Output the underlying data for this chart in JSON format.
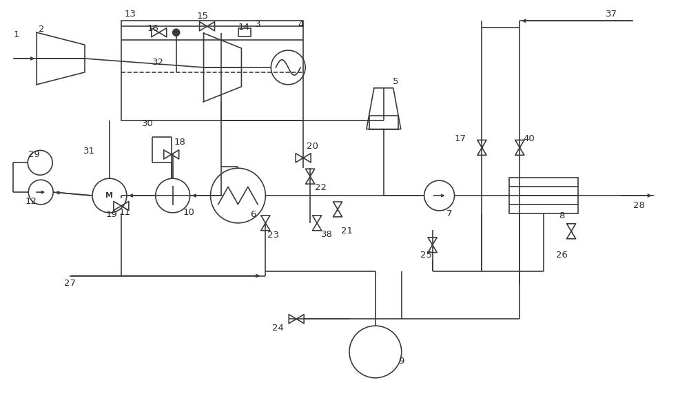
{
  "fig_width": 10.0,
  "fig_height": 5.94,
  "dpi": 100,
  "lc": "#3a3a3a",
  "lw": 1.2,
  "bg": "#ffffff"
}
